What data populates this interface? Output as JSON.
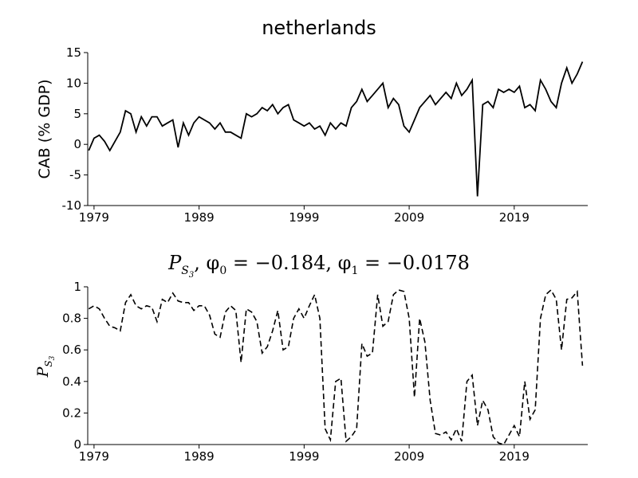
{
  "chart_data": [
    {
      "type": "line",
      "title": "netherlands",
      "ylabel": "CAB (% GDP)",
      "xlabel": "",
      "xlim": [
        1978.4,
        2026.0
      ],
      "ylim": [
        -10,
        15
      ],
      "xticks": [
        1979,
        1989,
        1999,
        2009,
        2019
      ],
      "yticks": [
        -10,
        -5,
        0,
        5,
        10,
        15
      ],
      "xtick_labels": [
        "1979",
        "1989",
        "1999",
        "2009",
        "2019"
      ],
      "ytick_labels": [
        "-10",
        "-5",
        "0",
        "5",
        "10",
        "15"
      ],
      "grid": false,
      "line_style": "solid",
      "series": [
        {
          "x": [
            1978.5,
            1979.0,
            1979.5,
            1980.0,
            1980.5,
            1981.0,
            1981.5,
            1982.0,
            1982.5,
            1983.0,
            1983.5,
            1984.0,
            1984.5,
            1985.0,
            1985.5,
            1986.0,
            1986.5,
            1987.0,
            1987.5,
            1988.0,
            1988.5,
            1989.0,
            1989.5,
            1990.0,
            1990.5,
            1991.0,
            1991.5,
            1992.0,
            1992.5,
            1993.0,
            1993.5,
            1994.0,
            1994.5,
            1995.0,
            1995.5,
            1996.0,
            1996.5,
            1997.0,
            1997.5,
            1998.0,
            1998.5,
            1999.0,
            1999.5,
            2000.0,
            2000.5,
            2001.0,
            2001.5,
            2002.0,
            2002.5,
            2003.0,
            2003.5,
            2004.0,
            2004.5,
            2005.0,
            2005.5,
            2006.0,
            2006.5,
            2007.0,
            2007.5,
            2008.0,
            2008.5,
            2009.0,
            2009.5,
            2010.0,
            2010.5,
            2011.0,
            2011.5,
            2012.0,
            2012.5,
            2013.0,
            2013.5,
            2014.0,
            2014.5,
            2015.0,
            2015.5,
            2016.0,
            2016.5,
            2017.0,
            2017.5,
            2018.0,
            2018.5,
            2019.0,
            2019.5,
            2020.0,
            2020.5,
            2021.0,
            2021.5,
            2022.0,
            2022.5,
            2023.0,
            2023.5,
            2024.0,
            2024.5,
            2025.0,
            2025.5
          ],
          "values": [
            -1.0,
            1.0,
            1.5,
            0.5,
            -1.0,
            0.5,
            2.0,
            5.5,
            5.0,
            2.0,
            4.5,
            3.0,
            4.5,
            4.5,
            3.0,
            3.5,
            4.0,
            -0.5,
            3.5,
            1.5,
            3.5,
            4.5,
            4.0,
            3.5,
            2.5,
            3.5,
            2.0,
            2.0,
            1.5,
            1.0,
            5.0,
            4.5,
            5.0,
            6.0,
            5.5,
            6.5,
            5.0,
            6.0,
            6.5,
            4.0,
            3.5,
            3.0,
            3.5,
            2.5,
            3.0,
            1.5,
            3.5,
            2.5,
            3.5,
            3.0,
            6.0,
            7.0,
            9.0,
            7.0,
            8.0,
            9.0,
            10.0,
            6.0,
            7.5,
            6.5,
            3.0,
            2.0,
            4.0,
            6.0,
            7.0,
            8.0,
            6.5,
            7.5,
            8.5,
            7.5,
            10.0,
            8.0,
            9.0,
            10.5,
            -8.5,
            6.5,
            7.0,
            6.0,
            9.0,
            8.5,
            9.0,
            8.5,
            9.5,
            6.0,
            6.5,
            5.5,
            10.5,
            9.0,
            7.0,
            6.0,
            10.0,
            12.5,
            10.0,
            11.5,
            13.5
          ]
        }
      ]
    },
    {
      "type": "line",
      "title": "P_{S_3}, φ_0 = −0.184, φ_1 = −0.0178",
      "ylabel": "P_{S_3}",
      "xlabel": "",
      "xlim": [
        1978.4,
        2026.0
      ],
      "ylim": [
        0,
        1
      ],
      "xticks": [
        1979,
        1989,
        1999,
        2009,
        2019
      ],
      "yticks": [
        0,
        0.2,
        0.4,
        0.6,
        0.8,
        1
      ],
      "xtick_labels": [
        "1979",
        "1989",
        "1999",
        "2009",
        "2019"
      ],
      "ytick_labels": [
        "0",
        "0.2",
        "0.4",
        "0.6",
        "0.8",
        "1"
      ],
      "grid": false,
      "line_style": "dashed",
      "series": [
        {
          "x": [
            1978.5,
            1979.0,
            1979.5,
            1980.0,
            1980.5,
            1981.0,
            1981.5,
            1982.0,
            1982.5,
            1983.0,
            1983.5,
            1984.0,
            1984.5,
            1985.0,
            1985.5,
            1986.0,
            1986.5,
            1987.0,
            1987.5,
            1988.0,
            1988.5,
            1989.0,
            1989.5,
            1990.0,
            1990.5,
            1991.0,
            1991.5,
            1992.0,
            1992.5,
            1993.0,
            1993.5,
            1994.0,
            1994.5,
            1995.0,
            1995.5,
            1996.0,
            1996.5,
            1997.0,
            1997.5,
            1998.0,
            1998.5,
            1999.0,
            1999.5,
            2000.0,
            2000.5,
            2001.0,
            2001.5,
            2002.0,
            2002.5,
            2003.0,
            2003.5,
            2004.0,
            2004.5,
            2005.0,
            2005.5,
            2006.0,
            2006.5,
            2007.0,
            2007.5,
            2008.0,
            2008.5,
            2009.0,
            2009.5,
            2010.0,
            2010.5,
            2011.0,
            2011.5,
            2012.0,
            2012.5,
            2013.0,
            2013.5,
            2014.0,
            2014.5,
            2015.0,
            2015.5,
            2016.0,
            2016.5,
            2017.0,
            2017.5,
            2018.0,
            2018.5,
            2019.0,
            2019.5,
            2020.0,
            2020.5,
            2021.0,
            2021.5,
            2022.0,
            2022.5,
            2023.0,
            2023.5,
            2024.0,
            2024.5,
            2025.0,
            2025.5
          ],
          "values": [
            0.86,
            0.88,
            0.86,
            0.8,
            0.75,
            0.74,
            0.72,
            0.9,
            0.95,
            0.88,
            0.86,
            0.88,
            0.87,
            0.78,
            0.92,
            0.9,
            0.96,
            0.91,
            0.9,
            0.9,
            0.85,
            0.88,
            0.88,
            0.82,
            0.7,
            0.68,
            0.84,
            0.88,
            0.85,
            0.52,
            0.86,
            0.84,
            0.78,
            0.58,
            0.62,
            0.72,
            0.85,
            0.6,
            0.62,
            0.8,
            0.86,
            0.8,
            0.88,
            0.95,
            0.8,
            0.1,
            0.03,
            0.4,
            0.42,
            0.02,
            0.05,
            0.1,
            0.64,
            0.56,
            0.58,
            0.95,
            0.75,
            0.78,
            0.95,
            0.98,
            0.97,
            0.8,
            0.3,
            0.8,
            0.65,
            0.28,
            0.07,
            0.06,
            0.08,
            0.03,
            0.1,
            0.02,
            0.4,
            0.44,
            0.12,
            0.28,
            0.22,
            0.05,
            0.01,
            0.0,
            0.06,
            0.12,
            0.05,
            0.4,
            0.16,
            0.22,
            0.8,
            0.95,
            0.98,
            0.92,
            0.6,
            0.92,
            0.93,
            0.97,
            0.5
          ]
        }
      ]
    }
  ]
}
